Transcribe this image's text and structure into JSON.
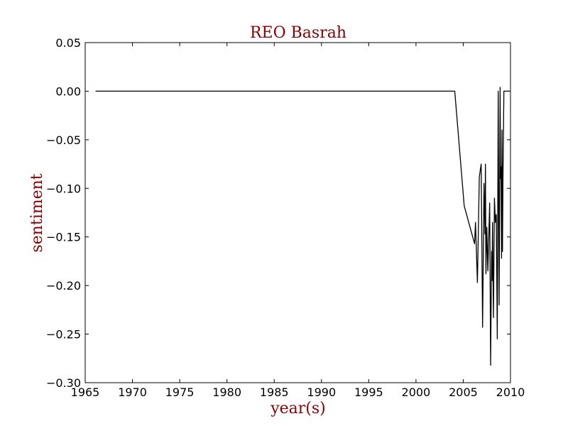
{
  "chart_data": {
    "type": "line",
    "title": "REO Basrah",
    "xlabel": "year(s)",
    "ylabel": "sentiment",
    "xlim": [
      1965,
      2010
    ],
    "ylim": [
      -0.3,
      0.05
    ],
    "xticks": [
      "1965",
      "1970",
      "1975",
      "1980",
      "1985",
      "1990",
      "1995",
      "2000",
      "2005",
      "2010"
    ],
    "yticks": [
      "0.05",
      "0.00",
      "−0.05",
      "−0.10",
      "−0.15",
      "−0.20",
      "−0.25",
      "−0.30"
    ],
    "grid": false,
    "colors": {
      "line": "#000000",
      "title": "#8b0000",
      "labels": "#8b0000",
      "background": "#ffffff"
    },
    "series": [
      {
        "x": [
          1966.1,
          2004.1,
          2005.1,
          2006.2,
          2006.3,
          2006.5,
          2006.7,
          2006.9,
          2007.05,
          2007.2,
          2007.3,
          2007.35,
          2007.4,
          2007.5,
          2007.6,
          2007.7,
          2007.8,
          2007.9,
          2008.0,
          2008.05,
          2008.1,
          2008.2,
          2008.3,
          2008.4,
          2008.5,
          2008.6,
          2008.7,
          2008.8,
          2008.9,
          2008.95,
          2009.0,
          2009.05,
          2009.1,
          2009.15,
          2009.2,
          2009.3,
          2009.4,
          2009.5,
          2009.6,
          2009.7,
          2009.8,
          2009.9
        ],
        "y": [
          0.0,
          0.0,
          -0.118,
          -0.157,
          -0.135,
          -0.197,
          -0.088,
          -0.075,
          -0.243,
          -0.095,
          -0.147,
          -0.075,
          -0.188,
          -0.14,
          -0.185,
          -0.15,
          -0.115,
          -0.282,
          -0.165,
          -0.195,
          -0.135,
          -0.233,
          -0.11,
          -0.135,
          -0.127,
          -0.255,
          0.0,
          -0.22,
          0.004,
          -0.09,
          -0.078,
          -0.172,
          -0.04,
          -0.165,
          -0.09,
          0.0,
          0.0,
          0.0,
          0.0,
          0.0,
          0.0,
          0.0
        ]
      }
    ]
  }
}
